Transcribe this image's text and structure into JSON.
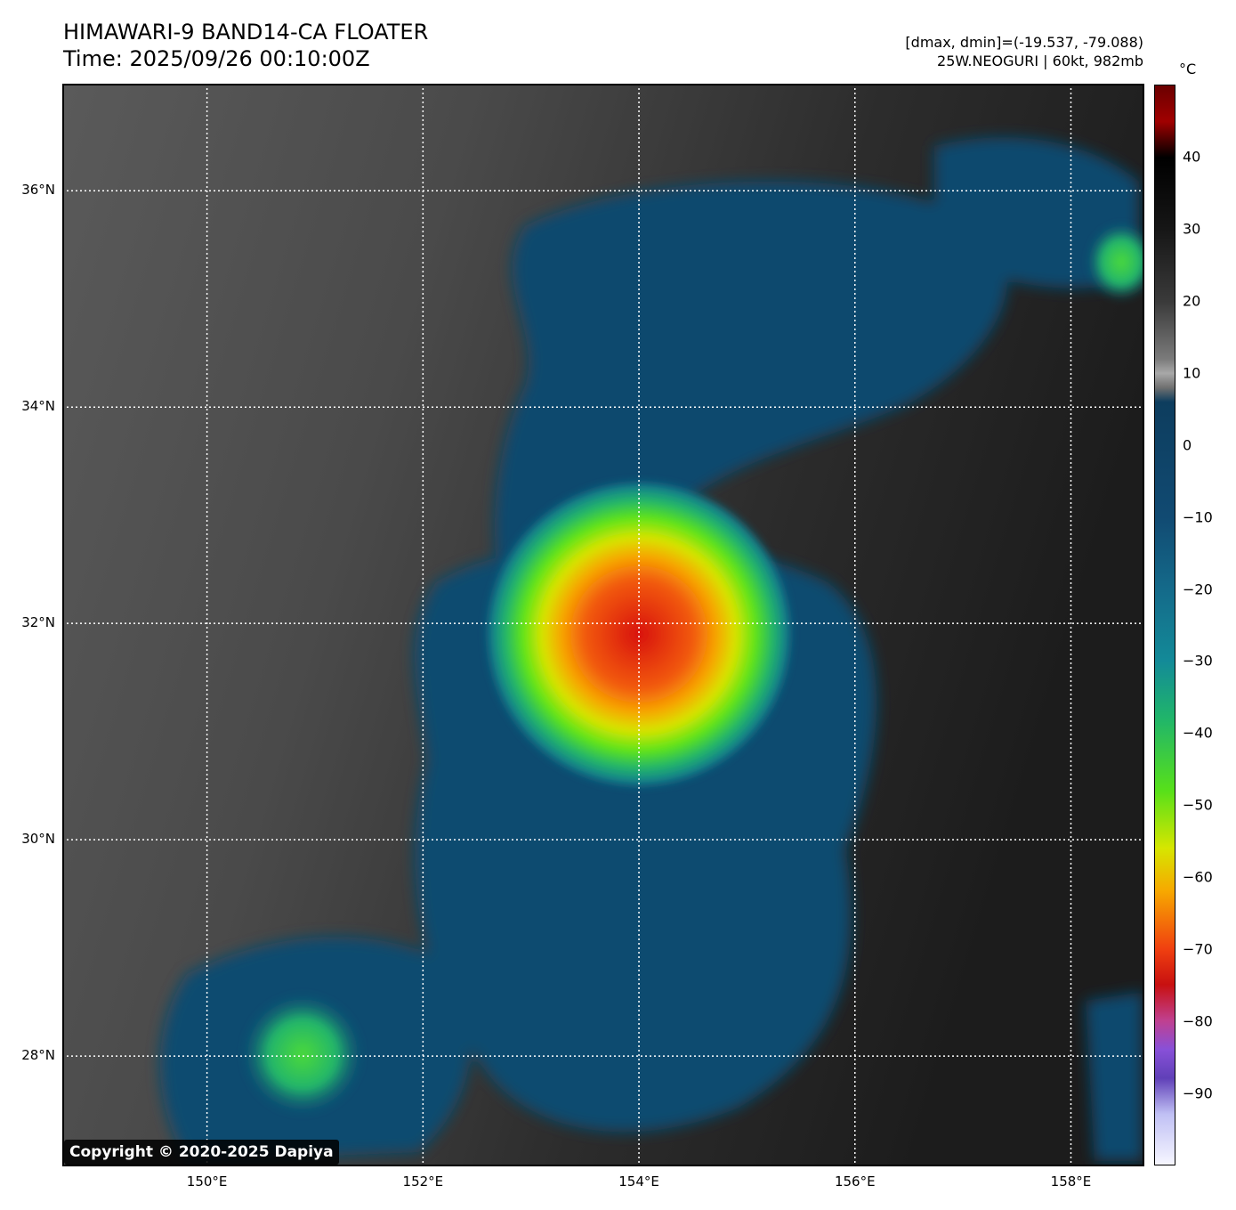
{
  "header": {
    "title": "HIMAWARI-9 BAND14-CA FLOATER",
    "time": "Time: 2025/09/26 00:10:00Z",
    "range": "[dmax, dmin]=(-19.537, -79.088)",
    "storm": "25W.NEOGURI | 60kt, 982mb"
  },
  "map": {
    "lat_labels": [
      {
        "lat": 36,
        "label": "36°N"
      },
      {
        "lat": 34,
        "label": "34°N"
      },
      {
        "lat": 32,
        "label": "32°N"
      },
      {
        "lat": 30,
        "label": "30°N"
      },
      {
        "lat": 28,
        "label": "28°N"
      }
    ],
    "lon_labels": [
      {
        "lon": 150,
        "label": "150°E"
      },
      {
        "lon": 152,
        "label": "152°E"
      },
      {
        "lon": 154,
        "label": "154°E"
      },
      {
        "lon": 156,
        "label": "156°E"
      },
      {
        "lon": 158,
        "label": "158°E"
      }
    ],
    "extent": {
      "lon_min": 148.66,
      "lon_max": 158.68,
      "lat_min": 26.98,
      "lat_max": 36.99
    },
    "storm_center": {
      "lat": 31.9,
      "lon": 154.0
    },
    "copyright": "Copyright © 2020-2025 Dapiya"
  },
  "colorbar": {
    "unit": "°C",
    "min": -100,
    "max": 50,
    "ticks": [
      {
        "value": 40,
        "label": "40"
      },
      {
        "value": 30,
        "label": "30"
      },
      {
        "value": 20,
        "label": "20"
      },
      {
        "value": 10,
        "label": "10"
      },
      {
        "value": 0,
        "label": "0"
      },
      {
        "value": -10,
        "label": "−10"
      },
      {
        "value": -20,
        "label": "−20"
      },
      {
        "value": -30,
        "label": "−30"
      },
      {
        "value": -40,
        "label": "−40"
      },
      {
        "value": -50,
        "label": "−50"
      },
      {
        "value": -60,
        "label": "−60"
      },
      {
        "value": -70,
        "label": "−70"
      },
      {
        "value": -80,
        "label": "−80"
      },
      {
        "value": -90,
        "label": "−90"
      }
    ],
    "colors": {
      "high": "#7a0000",
      "mid": "#0d3d5e",
      "low": "#f4f4ff"
    }
  }
}
